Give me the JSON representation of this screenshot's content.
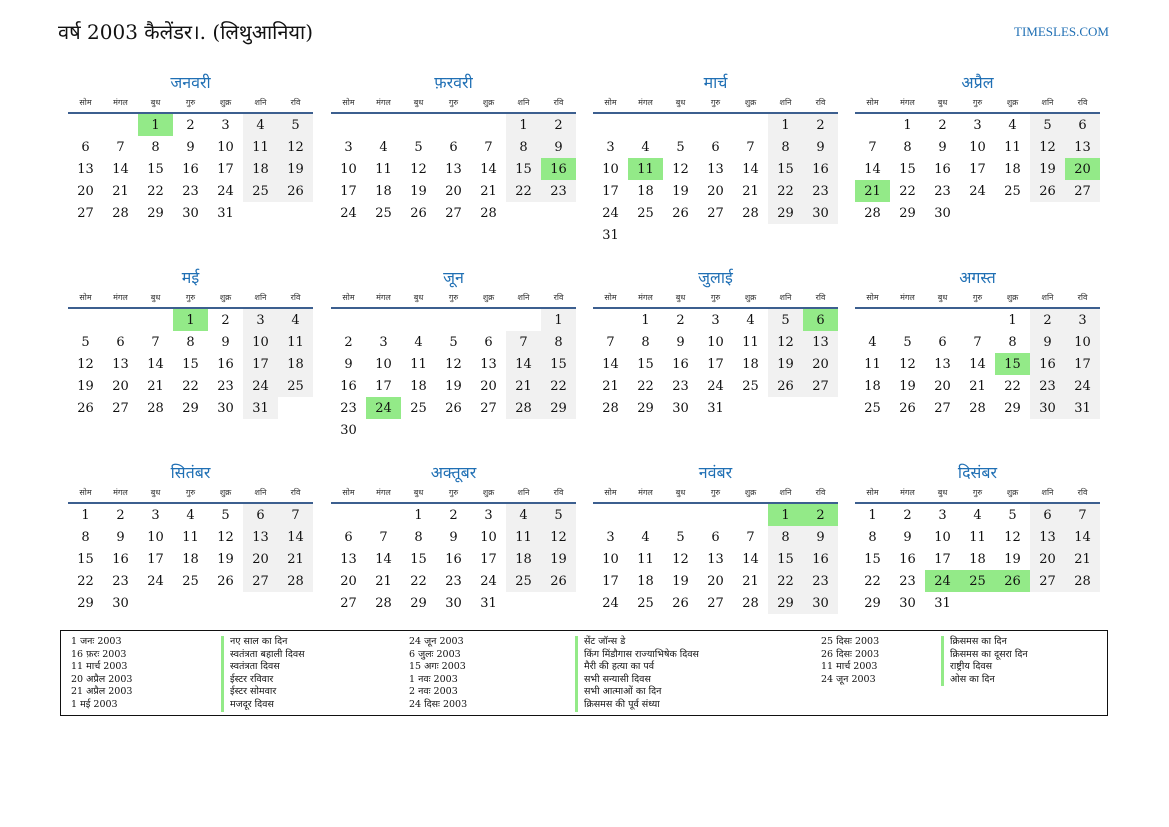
{
  "header": {
    "title": "वर्ष 2003 कैलेंडर।. (लिथुआनिया)",
    "site": "TIMESLES.COM"
  },
  "weekday_labels": [
    "सोम",
    "मंगल",
    "बुध",
    "गुरु",
    "शुक्र",
    "शनि",
    "रवि"
  ],
  "colors": {
    "accent": "#1f6fb4",
    "holiday": "#93ea88",
    "weekend": "#f1f1f1"
  },
  "months": [
    {
      "name": "जनवरी",
      "offset": 2,
      "days": 31,
      "holidays": [
        1
      ]
    },
    {
      "name": "फ़रवरी",
      "offset": 5,
      "days": 28,
      "holidays": [
        16
      ]
    },
    {
      "name": "मार्च",
      "offset": 5,
      "days": 31,
      "holidays": [
        11
      ]
    },
    {
      "name": "अप्रैल",
      "offset": 1,
      "days": 30,
      "holidays": [
        20,
        21
      ]
    },
    {
      "name": "मई",
      "offset": 3,
      "days": 31,
      "holidays": [
        1
      ]
    },
    {
      "name": "जून",
      "offset": 6,
      "days": 30,
      "holidays": [
        24
      ]
    },
    {
      "name": "जुलाई",
      "offset": 1,
      "days": 31,
      "holidays": [
        6
      ]
    },
    {
      "name": "अगस्त",
      "offset": 4,
      "days": 31,
      "holidays": [
        15
      ]
    },
    {
      "name": "सितंबर",
      "offset": 0,
      "days": 30,
      "holidays": []
    },
    {
      "name": "अक्तूबर",
      "offset": 2,
      "days": 31,
      "holidays": []
    },
    {
      "name": "नवंबर",
      "offset": 5,
      "days": 30,
      "holidays": [
        1,
        2
      ]
    },
    {
      "name": "दिसंबर",
      "offset": 0,
      "days": 31,
      "holidays": [
        24,
        25,
        26
      ]
    }
  ],
  "legend": [
    [
      {
        "date": "1 जनः 2003",
        "name": "नए साल का दिन"
      },
      {
        "date": "16 फ़रः 2003",
        "name": "स्वतंत्रता बहाली दिवस"
      },
      {
        "date": "11 मार्च 2003",
        "name": "स्वतंत्रता दिवस"
      },
      {
        "date": "20 अप्रैल 2003",
        "name": "ईस्टर रविवार"
      },
      {
        "date": "21 अप्रैल 2003",
        "name": "ईस्टर सोमवार"
      },
      {
        "date": "1 मई 2003",
        "name": "मजदूर दिवस"
      }
    ],
    [
      {
        "date": "24 जून 2003",
        "name": "सेंट जॉन्स डे"
      },
      {
        "date": "6 जुलः 2003",
        "name": "किंग मिंडौगास राज्याभिषेक दिवस"
      },
      {
        "date": "15 अगः 2003",
        "name": "मैरी की हत्या का पर्व"
      },
      {
        "date": "1 नवः 2003",
        "name": "सभी सन्यासी दिवस"
      },
      {
        "date": "2 नवः 2003",
        "name": "सभी आत्माओं का दिन"
      },
      {
        "date": "24 दिसः 2003",
        "name": "क्रिसमस की पूर्व संध्या"
      }
    ],
    [
      {
        "date": "25 दिसः 2003",
        "name": "क्रिसमस का दिन"
      },
      {
        "date": "26 दिसः 2003",
        "name": "क्रिसमस का दूसरा दिन"
      },
      {
        "date": "11 मार्च 2003",
        "name": "राष्ट्रीय दिवस"
      },
      {
        "date": "24 जून 2003",
        "name": "ओस का दिन"
      }
    ]
  ]
}
